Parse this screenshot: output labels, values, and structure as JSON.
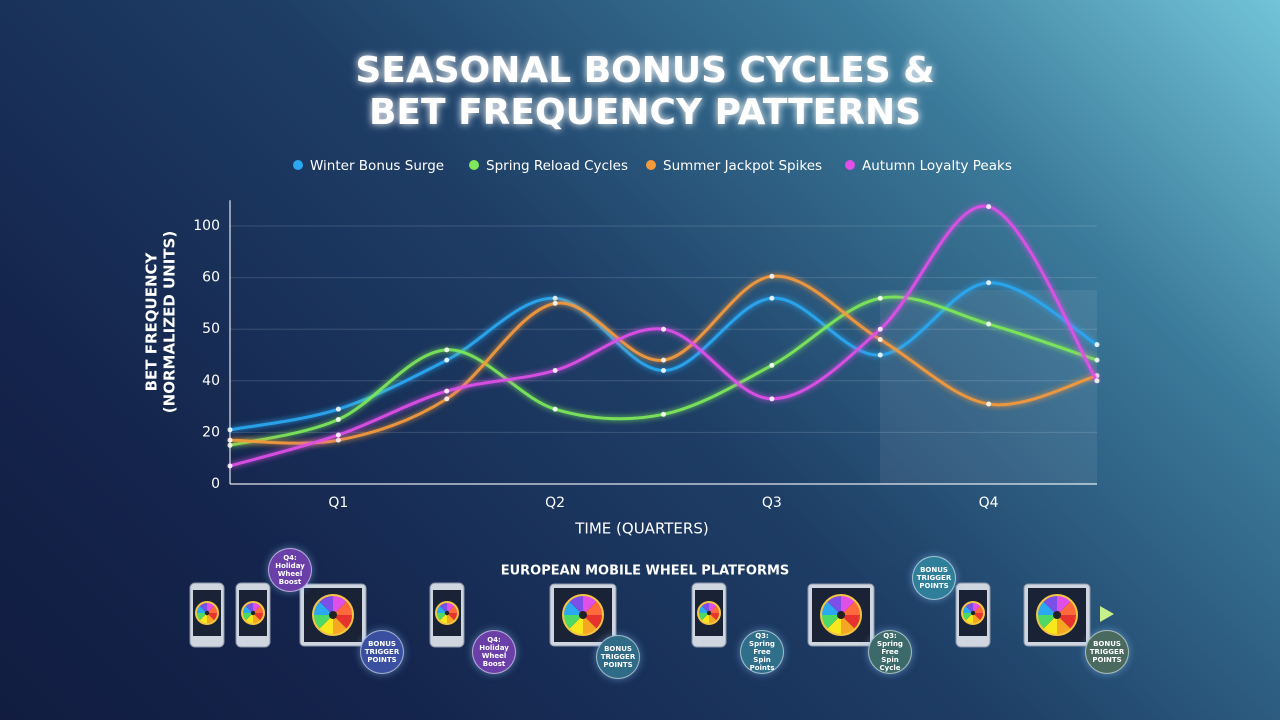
{
  "chart_data": {
    "type": "line",
    "title": [
      "SEASONAL BONUS CYCLES &",
      "BET FREQUENCY PATTERNS"
    ],
    "y_label": [
      "BET FREQUENCY",
      "(NORMALIZED UNITS)"
    ],
    "x_label": "TIME (QUARTERS)",
    "categories": [
      null,
      "Q1",
      null,
      "Q2",
      null,
      "Q3",
      null,
      "Q4",
      null
    ],
    "ylim": [
      0,
      120
    ],
    "yticks": [
      0,
      20,
      40,
      50,
      60,
      100
    ],
    "grid": true,
    "series": [
      {
        "name": "Winter Bonus Surge",
        "color": "#2aa8f2",
        "values": [
          21,
          29,
          44,
          56,
          42,
          56,
          45,
          59,
          47
        ]
      },
      {
        "name": "Spring Reload Cycles",
        "color": "#7ee85a",
        "values": [
          15,
          25,
          46,
          29,
          27,
          43,
          56,
          51,
          44
        ]
      },
      {
        "name": "Summer Jackpot Spikes",
        "color": "#f59a3c",
        "values": [
          17,
          17,
          33,
          55,
          44,
          61,
          48,
          31,
          41
        ]
      },
      {
        "name": "Autumn Loyalty Peaks",
        "color": "#e04fe8",
        "values": [
          7,
          19,
          36,
          42,
          50,
          33,
          50,
          115,
          40
        ]
      }
    ]
  },
  "platforms": {
    "title": "EUROPEAN MOBILE WHEEL PLATFORMS",
    "badges": [
      {
        "text": "Q4: Holiday Wheel Boost",
        "color": "#6a3fa8"
      },
      {
        "text": "BONUS TRIGGER POINTS",
        "color": "#3a4fa0"
      },
      {
        "text": "Q4: Holiday Wheel Boost",
        "color": "#6a3fa8"
      },
      {
        "text": "BONUS TRIGGER POINTS",
        "color": "#2f6a86"
      },
      {
        "text": "Q3: Spring Free Spin Points",
        "color": "#2f6f8a"
      },
      {
        "text": "Q3: Spring Free Spin Cycle",
        "color": "#3c6a6a"
      },
      {
        "text": "BONUS TRIGGER POINTS",
        "color": "#2f7f9a"
      },
      {
        "text": "BONUS TRIGGER POINTS",
        "color": "#4a6a60"
      }
    ]
  }
}
